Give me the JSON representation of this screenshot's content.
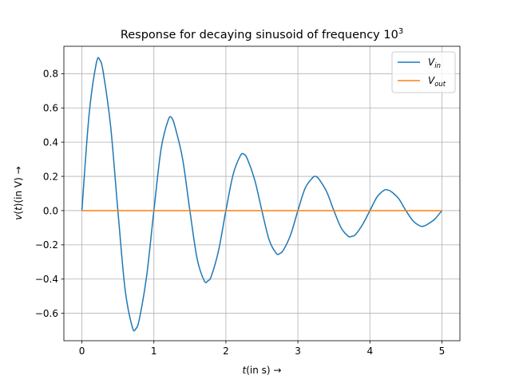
{
  "chart_data": {
    "type": "line",
    "title": "Response for decaying sinusoid of frequency 10",
    "title_superscript": "3",
    "xlabel": "t(in s) →",
    "xlabel_italic_part": "t",
    "xlabel_rest": "(in s) →",
    "ylabel": "v(t)(in V) →",
    "ylabel_italic_v": "v",
    "ylabel_paren_open": "(",
    "ylabel_italic_t": "t",
    "ylabel_rest": ")(in V) →",
    "xlim": [
      -0.25,
      5.25
    ],
    "ylim": [
      -0.76,
      0.96
    ],
    "x_ticks": [
      0,
      1,
      2,
      3,
      4,
      5
    ],
    "x_tick_labels": [
      "0",
      "1",
      "2",
      "3",
      "4",
      "5"
    ],
    "y_ticks": [
      -0.6,
      -0.4,
      -0.2,
      0.0,
      0.2,
      0.4,
      0.6,
      0.8
    ],
    "y_tick_labels": [
      "−0.6",
      "−0.4",
      "−0.2",
      "0.0",
      "0.2",
      "0.4",
      "0.6",
      "0.8"
    ],
    "grid": true,
    "legend_position": "top-right",
    "series": [
      {
        "name": "V_in",
        "label_main": "V",
        "label_sub": "in",
        "color": "#1f77b4",
        "x": [
          0,
          0.1,
          0.2,
          0.25,
          0.3,
          0.4,
          0.5,
          0.6,
          0.7,
          0.75,
          0.8,
          0.9,
          1.0,
          1.1,
          1.2,
          1.25,
          1.3,
          1.4,
          1.5,
          1.6,
          1.7,
          1.75,
          1.8,
          1.9,
          2.0,
          2.1,
          2.2,
          2.25,
          2.3,
          2.4,
          2.5,
          2.6,
          2.7,
          2.75,
          2.8,
          2.9,
          3.0,
          3.1,
          3.2,
          3.25,
          3.3,
          3.4,
          3.5,
          3.6,
          3.7,
          3.75,
          3.8,
          3.9,
          4.0,
          4.1,
          4.2,
          4.25,
          4.3,
          4.4,
          4.5,
          4.6,
          4.7,
          4.75,
          4.8,
          4.9,
          5.0
        ],
        "y": [
          0.0,
          0.56,
          0.86,
          0.88,
          0.8,
          0.49,
          0.0,
          -0.46,
          -0.68,
          -0.69,
          -0.63,
          -0.38,
          0.0,
          0.36,
          0.53,
          0.54,
          0.48,
          0.3,
          0.0,
          -0.28,
          -0.41,
          -0.41,
          -0.38,
          -0.23,
          0.0,
          0.21,
          0.32,
          0.33,
          0.3,
          0.18,
          0.0,
          -0.17,
          -0.25,
          -0.25,
          -0.23,
          -0.14,
          0.0,
          0.13,
          0.19,
          0.2,
          0.18,
          0.11,
          0.0,
          -0.1,
          -0.15,
          -0.15,
          -0.14,
          -0.08,
          0.0,
          0.08,
          0.12,
          0.12,
          0.11,
          0.07,
          0.0,
          -0.06,
          -0.09,
          -0.09,
          -0.08,
          -0.05,
          0.0
        ]
      },
      {
        "name": "V_out",
        "label_main": "V",
        "label_sub": "out",
        "color": "#ff7f0e",
        "x": [
          0,
          5
        ],
        "y": [
          0.0,
          0.0
        ]
      }
    ]
  }
}
